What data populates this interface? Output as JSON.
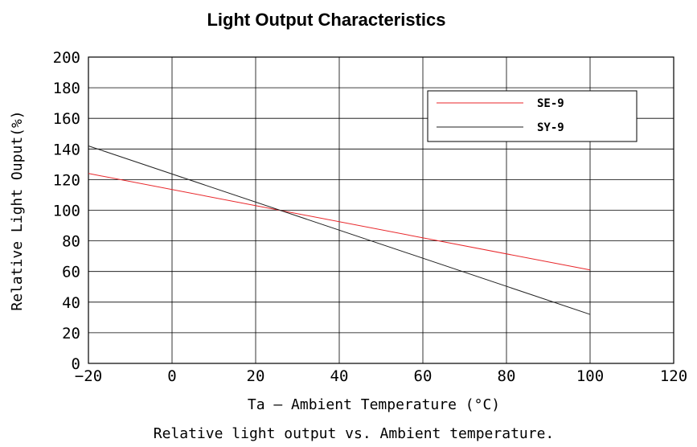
{
  "chart_data": {
    "type": "line",
    "title": "Light Output Characteristics",
    "xlabel": "Ta — Ambient Temperature (°C)",
    "ylabel": "Relative Light Ouput(%)",
    "caption": "Relative light output vs. Ambient temperature.",
    "xlim": [
      -20,
      120
    ],
    "ylim": [
      0,
      200
    ],
    "x_ticks": [
      "−20",
      "0",
      "20",
      "40",
      "60",
      "80",
      "100",
      "120"
    ],
    "y_ticks": [
      "0",
      "20",
      "40",
      "60",
      "80",
      "100",
      "120",
      "140",
      "160",
      "180",
      "200"
    ],
    "x_tick_values": [
      -20,
      0,
      20,
      40,
      60,
      80,
      100,
      120
    ],
    "y_tick_values": [
      0,
      20,
      40,
      60,
      80,
      100,
      120,
      140,
      160,
      180,
      200
    ],
    "grid": true,
    "legend_position": "top-right",
    "series": [
      {
        "name": "SE-9",
        "color": "#e8262a",
        "x": [
          -20,
          100
        ],
        "y": [
          124,
          61
        ]
      },
      {
        "name": "SY-9",
        "color": "#222222",
        "x": [
          -20,
          100
        ],
        "y": [
          142,
          32
        ]
      }
    ]
  }
}
